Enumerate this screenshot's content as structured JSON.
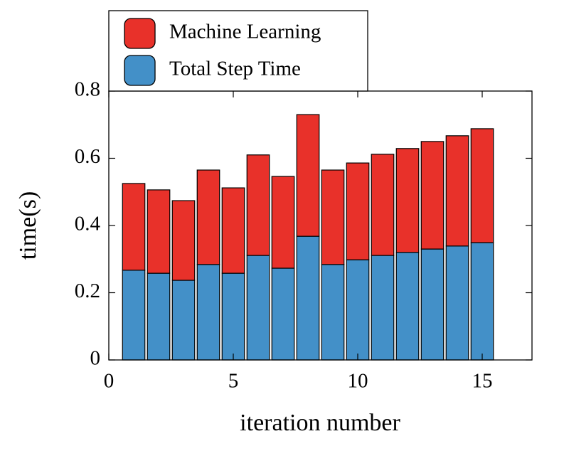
{
  "chart_data": {
    "type": "stacked_bar",
    "x_label": "iteration number",
    "y_label": "time(s)",
    "x": [
      1,
      2,
      3,
      4,
      5,
      6,
      7,
      8,
      9,
      10,
      11,
      12,
      13,
      14,
      15
    ],
    "series": [
      {
        "name": "Machine Learning",
        "color": "#e8312a",
        "values": [
          0.258,
          0.248,
          0.237,
          0.281,
          0.254,
          0.299,
          0.273,
          0.362,
          0.281,
          0.288,
          0.301,
          0.309,
          0.32,
          0.328,
          0.339
        ]
      },
      {
        "name": "Total Step Time",
        "color": "#4390c8",
        "values": [
          0.267,
          0.258,
          0.237,
          0.284,
          0.258,
          0.311,
          0.273,
          0.368,
          0.284,
          0.298,
          0.311,
          0.32,
          0.33,
          0.339,
          0.349
        ]
      }
    ],
    "xlim": [
      0,
      17
    ],
    "xticks": [
      0,
      5,
      10,
      15
    ],
    "ylim": [
      0,
      0.8
    ],
    "yticks": [
      0,
      0.2,
      0.4,
      0.6,
      0.8
    ],
    "legend": "top-left-outside"
  }
}
